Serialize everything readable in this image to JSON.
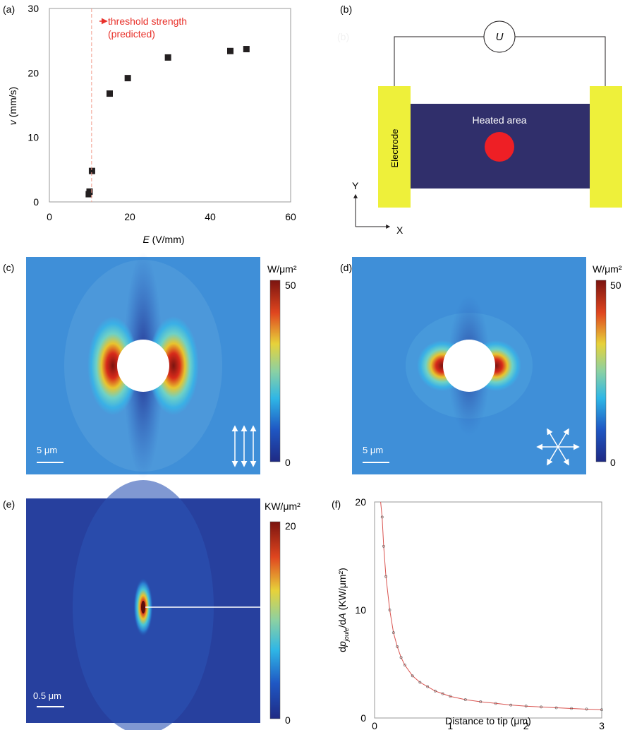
{
  "panel_labels": {
    "a": "(a)",
    "b": "(b)",
    "c": "(c)",
    "d": "(d)",
    "e": "(e)",
    "f": "(f)"
  },
  "diagram": {
    "voltage_label": "U",
    "electrode_label": "Electrode",
    "heated_area_label": "Heated area",
    "ghost_label": "(b)",
    "axis_y": "Y",
    "axis_x": "X"
  },
  "colormap_c": {
    "unit": "W/μm²",
    "max_label": "50",
    "min_label": "0",
    "scale_bar": "5 μm"
  },
  "colormap_d": {
    "unit": "W/μm²",
    "max_label": "50",
    "min_label": "0",
    "scale_bar": "5 μm"
  },
  "colormap_e": {
    "unit": "KW/μm²",
    "max_label": "20",
    "min_label": "0",
    "scale_bar": "0.5 μm"
  },
  "chart_data": [
    {
      "type": "scatter",
      "panel": "a",
      "xlabel": "E (V/mm)",
      "ylabel": "v (mm/s)",
      "xlim": [
        0,
        60
      ],
      "ylim": [
        0,
        30
      ],
      "xticks": [
        "0",
        "20",
        "40",
        "60"
      ],
      "yticks": [
        "0",
        "10",
        "20",
        "30"
      ],
      "annotation": {
        "line1": "threshold strength",
        "line2": "(predicted)",
        "x": 10.5
      },
      "points": [
        {
          "x": 9.8,
          "y": 1.2
        },
        {
          "x": 10.0,
          "y": 1.6
        },
        {
          "x": 10.6,
          "y": 4.8
        },
        {
          "x": 15.0,
          "y": 16.8
        },
        {
          "x": 19.5,
          "y": 19.2
        },
        {
          "x": 29.5,
          "y": 22.4
        },
        {
          "x": 45.0,
          "y": 23.4
        },
        {
          "x": 49.0,
          "y": 23.7
        }
      ],
      "grid": false
    },
    {
      "type": "line",
      "panel": "f",
      "xlabel": "Distance to tip (μm)",
      "ylabel": "dp_joule/dA (KW/μm²)",
      "xlim": [
        0,
        3
      ],
      "ylim": [
        0,
        20
      ],
      "xticks": [
        "0",
        "1",
        "2",
        "3"
      ],
      "yticks": [
        "0",
        "10",
        "20"
      ],
      "series": [
        {
          "x": [
            0.08,
            0.1,
            0.12,
            0.15,
            0.2,
            0.25,
            0.3,
            0.35,
            0.4,
            0.5,
            0.6,
            0.7,
            0.8,
            0.9,
            1.0,
            1.2,
            1.4,
            1.6,
            1.8,
            2.0,
            2.2,
            2.4,
            2.6,
            2.8,
            3.0
          ],
          "y": [
            20.5,
            18.6,
            15.9,
            13.1,
            10.0,
            7.9,
            6.6,
            5.6,
            4.9,
            3.9,
            3.3,
            2.9,
            2.5,
            2.25,
            2.0,
            1.7,
            1.5,
            1.35,
            1.2,
            1.1,
            1.02,
            0.95,
            0.88,
            0.82,
            0.77
          ],
          "color": "#d9534f"
        }
      ],
      "grid": false
    }
  ]
}
